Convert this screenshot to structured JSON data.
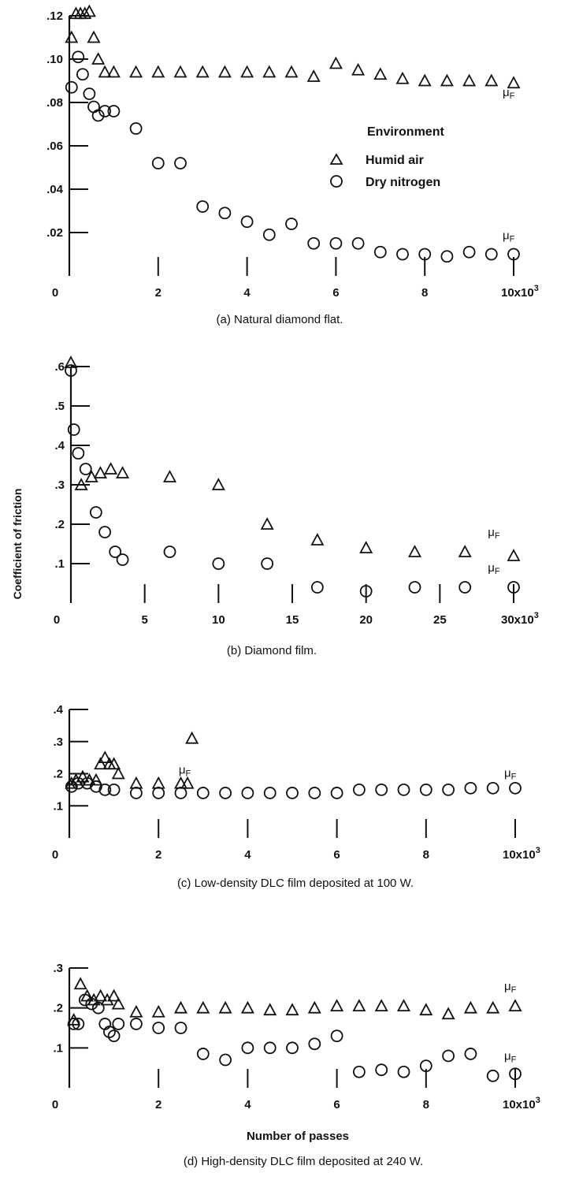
{
  "y_axis_label": "Coefficient of friction",
  "x_axis_label": "Number of passes",
  "legend": {
    "title": "Environment",
    "entries": [
      {
        "marker": "triangle",
        "label": "Humid air"
      },
      {
        "marker": "circle",
        "label": "Dry nitrogen"
      }
    ]
  },
  "mu_label": "μF",
  "chart_data": [
    {
      "type": "scatter",
      "panel": "a",
      "caption": "(a) Natural diamond flat.",
      "xlim": [
        0,
        10000
      ],
      "ylim": [
        0,
        0.12
      ],
      "x_ticks": [
        0,
        2000,
        4000,
        6000,
        8000,
        10000
      ],
      "x_tick_labels": [
        "0",
        "2",
        "4",
        "6",
        "8",
        "10x10³"
      ],
      "y_ticks": [
        0.02,
        0.04,
        0.06,
        0.08,
        0.1,
        0.12
      ],
      "y_tick_labels": [
        ".02",
        ".04",
        ".06",
        ".08",
        ".10",
        ".12"
      ],
      "series": [
        {
          "marker": "triangle",
          "x": [
            50,
            150,
            250,
            350,
            450,
            550,
            650,
            800,
            1000,
            1500,
            2000,
            2500,
            3000,
            3500,
            4000,
            4500,
            5000,
            5500,
            6000,
            6500,
            7000,
            7500,
            8000,
            8500,
            9000,
            9500,
            10000
          ],
          "y": [
            0.11,
            0.121,
            0.121,
            0.121,
            0.122,
            0.11,
            0.1,
            0.094,
            0.094,
            0.094,
            0.094,
            0.094,
            0.094,
            0.094,
            0.094,
            0.094,
            0.094,
            0.092,
            0.098,
            0.095,
            0.093,
            0.091,
            0.09,
            0.09,
            0.09,
            0.09,
            0.089
          ]
        },
        {
          "marker": "circle",
          "x": [
            50,
            200,
            300,
            450,
            550,
            650,
            800,
            1000,
            1500,
            2000,
            2500,
            3000,
            3500,
            4000,
            4500,
            5000,
            5500,
            6000,
            6500,
            7000,
            7500,
            8000,
            8500,
            9000,
            9500,
            10000
          ],
          "y": [
            0.087,
            0.101,
            0.093,
            0.084,
            0.078,
            0.074,
            0.076,
            0.076,
            0.068,
            0.052,
            0.052,
            0.032,
            0.029,
            0.025,
            0.019,
            0.024,
            0.015,
            0.015,
            0.015,
            0.011,
            0.01,
            0.01,
            0.009,
            0.011,
            0.01,
            0.01
          ]
        }
      ],
      "mu_markers": [
        {
          "x": 10000,
          "y": 0.083
        },
        {
          "x": 10000,
          "y": 0.017
        }
      ]
    },
    {
      "type": "scatter",
      "panel": "b",
      "caption": "(b) Diamond film.",
      "xlim": [
        0,
        30000
      ],
      "ylim": [
        0,
        0.6
      ],
      "x_ticks": [
        0,
        5000,
        10000,
        15000,
        20000,
        25000,
        30000
      ],
      "x_tick_labels": [
        "0",
        "5",
        "10",
        "15",
        "20",
        "25",
        "30x10³"
      ],
      "y_ticks": [
        0.1,
        0.2,
        0.3,
        0.4,
        0.5,
        0.6
      ],
      "y_tick_labels": [
        ".1",
        ".2",
        ".3",
        ".4",
        ".5",
        ".6"
      ],
      "series": [
        {
          "marker": "triangle",
          "x": [
            0,
            700,
            1400,
            2000,
            2700,
            3500,
            6700,
            10000,
            13300,
            16700,
            20000,
            23300,
            26700,
            30000
          ],
          "y": [
            0.61,
            0.3,
            0.32,
            0.33,
            0.34,
            0.33,
            0.32,
            0.3,
            0.2,
            0.16,
            0.14,
            0.13,
            0.13,
            0.12
          ]
        },
        {
          "marker": "circle",
          "x": [
            0,
            200,
            500,
            1000,
            1700,
            2300,
            3000,
            3500,
            6700,
            10000,
            13300,
            16700,
            20000,
            23300,
            26700,
            30000
          ],
          "y": [
            0.59,
            0.44,
            0.38,
            0.34,
            0.23,
            0.18,
            0.13,
            0.11,
            0.13,
            0.1,
            0.1,
            0.04,
            0.03,
            0.04,
            0.04,
            0.04
          ]
        }
      ],
      "mu_markers": [
        {
          "x": 29000,
          "y": 0.17
        },
        {
          "x": 29000,
          "y": 0.08
        }
      ]
    },
    {
      "type": "scatter",
      "panel": "c",
      "caption": "(c) Low-density DLC film deposited at 100 W.",
      "xlim": [
        0,
        10000
      ],
      "ylim": [
        0,
        0.4
      ],
      "x_ticks": [
        0,
        2000,
        4000,
        6000,
        8000,
        10000
      ],
      "x_tick_labels": [
        "0",
        "2",
        "4",
        "6",
        "8",
        "10x10³"
      ],
      "y_ticks": [
        0.1,
        0.2,
        0.3,
        0.4
      ],
      "y_tick_labels": [
        ".1",
        ".2",
        ".3",
        ".4"
      ],
      "series": [
        {
          "marker": "triangle",
          "x": [
            50,
            150,
            300,
            450,
            600,
            700,
            800,
            900,
            1000,
            1100,
            1500,
            2000,
            2500,
            2650,
            2750
          ],
          "y": [
            0.17,
            0.18,
            0.19,
            0.18,
            0.18,
            0.23,
            0.25,
            0.23,
            0.23,
            0.2,
            0.17,
            0.17,
            0.17,
            0.17,
            0.31
          ]
        },
        {
          "marker": "circle",
          "x": [
            50,
            200,
            400,
            600,
            800,
            1000,
            1500,
            2000,
            2500,
            3000,
            3500,
            4000,
            4500,
            5000,
            5500,
            6000,
            6500,
            7000,
            7500,
            8000,
            8500,
            9000,
            9500,
            10000
          ],
          "y": [
            0.16,
            0.17,
            0.17,
            0.16,
            0.15,
            0.15,
            0.14,
            0.14,
            0.14,
            0.14,
            0.14,
            0.14,
            0.14,
            0.14,
            0.14,
            0.14,
            0.15,
            0.15,
            0.15,
            0.15,
            0.15,
            0.155,
            0.155,
            0.155
          ]
        }
      ],
      "mu_markers": [
        {
          "x": 2700,
          "y": 0.2
        },
        {
          "x": 10000,
          "y": 0.19
        }
      ]
    },
    {
      "type": "scatter",
      "panel": "d",
      "caption": "(d) High-density DLC film deposited at 240 W.",
      "xlim": [
        0,
        10000
      ],
      "ylim": [
        0,
        0.3
      ],
      "x_ticks": [
        0,
        2000,
        4000,
        6000,
        8000,
        10000
      ],
      "x_tick_labels": [
        "0",
        "2",
        "4",
        "6",
        "8",
        "10x10³"
      ],
      "y_ticks": [
        0.1,
        0.2,
        0.3
      ],
      "y_tick_labels": [
        ".1",
        ".2",
        ".3"
      ],
      "series": [
        {
          "marker": "triangle",
          "x": [
            100,
            250,
            400,
            550,
            700,
            850,
            1000,
            1100,
            1500,
            2000,
            2500,
            3000,
            3500,
            4000,
            4500,
            5000,
            5500,
            6000,
            6500,
            7000,
            7500,
            8000,
            8500,
            9000,
            9500,
            10000
          ],
          "y": [
            0.17,
            0.26,
            0.23,
            0.22,
            0.23,
            0.22,
            0.23,
            0.21,
            0.19,
            0.19,
            0.2,
            0.2,
            0.2,
            0.2,
            0.195,
            0.195,
            0.2,
            0.205,
            0.205,
            0.205,
            0.205,
            0.195,
            0.185,
            0.2,
            0.2,
            0.205
          ]
        },
        {
          "marker": "circle",
          "x": [
            100,
            200,
            350,
            500,
            650,
            800,
            900,
            1000,
            1100,
            1500,
            2000,
            2500,
            3000,
            3500,
            4000,
            4500,
            5000,
            5500,
            6000,
            6500,
            7000,
            7500,
            8000,
            8500,
            9000,
            9500,
            10000
          ],
          "y": [
            0.16,
            0.16,
            0.22,
            0.21,
            0.2,
            0.16,
            0.14,
            0.13,
            0.16,
            0.16,
            0.15,
            0.15,
            0.085,
            0.07,
            0.1,
            0.1,
            0.1,
            0.11,
            0.13,
            0.04,
            0.045,
            0.04,
            0.055,
            0.08,
            0.085,
            0.03,
            0.035
          ]
        }
      ],
      "mu_markers": [
        {
          "x": 10000,
          "y": 0.245
        },
        {
          "x": 10000,
          "y": 0.07
        }
      ]
    }
  ]
}
